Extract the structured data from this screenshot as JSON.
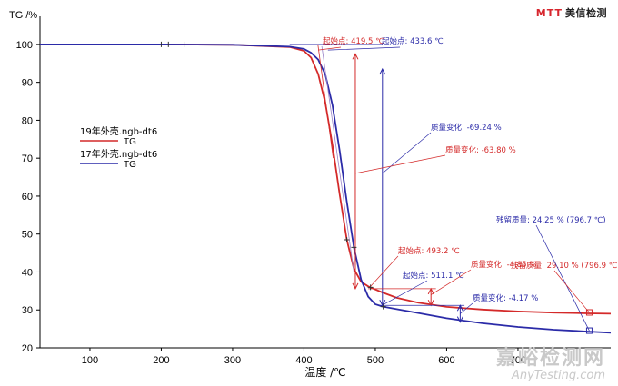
{
  "brand": {
    "mark": "MTT",
    "name": "美信检测"
  },
  "watermark": {
    "cn": "嘉峪检测网",
    "en": "AnyTesting.com"
  },
  "colors": {
    "series1": "#d42a2a",
    "series2": "#2b2ba8",
    "axis": "#000000",
    "marker": "#333333"
  },
  "chart_data": {
    "type": "line",
    "title": "",
    "xlabel": "温度 /℃",
    "ylabel": "TG /%",
    "xlim": [
      30,
      830
    ],
    "ylim": [
      20,
      105
    ],
    "xticks": [
      100,
      200,
      300,
      400,
      500,
      600,
      700
    ],
    "yticks": [
      20,
      30,
      40,
      50,
      60,
      70,
      80,
      90,
      100
    ],
    "grid": false,
    "legend": {
      "placement": "center-left",
      "entries": [
        {
          "name": "19年外壳.ngb-dt6",
          "line_label": "TG",
          "color": "#d42a2a"
        },
        {
          "name": "17年外壳.ngb-dt6",
          "line_label": "TG",
          "color": "#2b2ba8"
        }
      ]
    },
    "series": [
      {
        "name": "19年外壳.ngb-dt6 TG",
        "color": "#d42a2a",
        "x": [
          30,
          200,
          300,
          380,
          400,
          410,
          420,
          430,
          440,
          450,
          460,
          470,
          480,
          490,
          500,
          510,
          530,
          560,
          600,
          650,
          700,
          750,
          797,
          830
        ],
        "y": [
          100,
          100,
          99.9,
          99.3,
          98.3,
          96.5,
          92.2,
          84.5,
          73.5,
          60.5,
          48.5,
          40.8,
          37.4,
          36.2,
          35.4,
          34.6,
          33.2,
          31.9,
          30.8,
          30.1,
          29.6,
          29.3,
          29.1,
          29.0
        ]
      },
      {
        "name": "17年外壳.ngb-dt6 TG",
        "color": "#2b2ba8",
        "x": [
          30,
          200,
          300,
          380,
          400,
          410,
          420,
          430,
          440,
          450,
          460,
          470,
          480,
          490,
          500,
          510,
          530,
          560,
          600,
          650,
          700,
          750,
          797,
          830
        ],
        "y": [
          100,
          100,
          99.9,
          99.4,
          98.8,
          97.8,
          96.0,
          92.0,
          84.0,
          72.0,
          58.5,
          46.5,
          38.0,
          33.5,
          31.5,
          30.9,
          30.2,
          29.2,
          27.8,
          26.5,
          25.5,
          24.8,
          24.3,
          24.0
        ]
      }
    ],
    "annotations": [
      {
        "text": "起始点: 419.5 ℃",
        "color": "#d42a2a"
      },
      {
        "text": "起始点: 433.6 ℃",
        "color": "#2b2ba8"
      },
      {
        "text": "质量变化: -69.24 %",
        "color": "#2b2ba8"
      },
      {
        "text": "质量变化: -63.80 %",
        "color": "#d42a2a"
      },
      {
        "text": "起始点: 493.2 ℃",
        "color": "#d42a2a"
      },
      {
        "text": "起始点: 511.1 ℃",
        "color": "#2b2ba8"
      },
      {
        "text": "质量变化: -4.85 %",
        "color": "#d42a2a"
      },
      {
        "text": "质量变化: -4.17 %",
        "color": "#2b2ba8"
      },
      {
        "text": "残留质量: 24.25 % (796.7 ℃)",
        "color": "#2b2ba8"
      },
      {
        "text": "残留质量: 29.10 % (796.9 ℃)",
        "color": "#d42a2a"
      }
    ]
  }
}
